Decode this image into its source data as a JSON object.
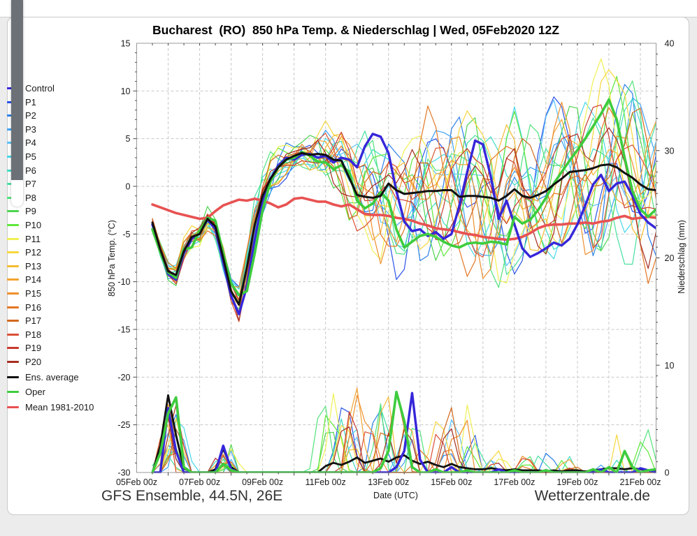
{
  "page": {
    "title": "Bucharest  (RO)  850 hPa Temp. & Niederschlag | Wed, 05Feb2020 12Z",
    "footer_left": "GFS Ensemble, 44.5N, 26E",
    "footer_right": "Wetterzentrale.de"
  },
  "legend": {
    "items": [
      {
        "label": "Control",
        "color": "#3626d9"
      },
      {
        "label": "P1",
        "color": "#2a52e8"
      },
      {
        "label": "P2",
        "color": "#2a7fe8"
      },
      {
        "label": "P3",
        "color": "#3fa2f5"
      },
      {
        "label": "P4",
        "color": "#5cc0fa"
      },
      {
        "label": "P5",
        "color": "#49d7e8"
      },
      {
        "label": "P6",
        "color": "#3fdcc3"
      },
      {
        "label": "P7",
        "color": "#47e0a0"
      },
      {
        "label": "P8",
        "color": "#52e27c"
      },
      {
        "label": "P9",
        "color": "#4fd44f"
      },
      {
        "label": "P10",
        "color": "#5fe83a"
      },
      {
        "label": "P11",
        "color": "#f0f055"
      },
      {
        "label": "P12",
        "color": "#f7d73e"
      },
      {
        "label": "P13",
        "color": "#f5bc35"
      },
      {
        "label": "P14",
        "color": "#f2a431"
      },
      {
        "label": "P15",
        "color": "#ee8f2c"
      },
      {
        "label": "P16",
        "color": "#e47724"
      },
      {
        "label": "P17",
        "color": "#d2691e"
      },
      {
        "label": "P18",
        "color": "#da5035"
      },
      {
        "label": "P19",
        "color": "#c83a2e"
      },
      {
        "label": "P20",
        "color": "#a62d20"
      },
      {
        "label": "Ens. average",
        "color": "#111111"
      },
      {
        "label": "Oper",
        "color": "#3ecc3e"
      },
      {
        "label": "Mean 1981-2010",
        "color": "#e85252"
      }
    ]
  },
  "chart_data": {
    "type": "line",
    "title": "Bucharest  (RO)  850 hPa Temp. & Niederschlag | Wed, 05Feb2020 12Z",
    "xlabel": "Date (UTC)",
    "ylabel_left": "850 hPa Temp. (°C)",
    "ylabel_right": "Niederschlag (mm)",
    "ylim_left": [
      -30,
      15
    ],
    "yticks_left": [
      15,
      10,
      5,
      0,
      -5,
      -10,
      -15,
      -20,
      -25,
      -30
    ],
    "ylim_right": [
      0,
      40
    ],
    "yticks_right": [
      0,
      10,
      20,
      30,
      40
    ],
    "x_days_span": 16.5,
    "x_tick_days": [
      0,
      2,
      4,
      6,
      8,
      10,
      12,
      14,
      16
    ],
    "x_tick_labels": [
      "05Feb 00z",
      "07Feb 00z",
      "09Feb 00z",
      "11Feb 00z",
      "13Feb 00z",
      "15Feb 00z",
      "17Feb 00z",
      "19Feb 00z",
      "21Feb 00z"
    ],
    "grid": true,
    "legend_position": "outside-left",
    "time": {
      "start_day": 0.5,
      "step_day": 0.25,
      "points": 65
    },
    "main_series": [
      {
        "name": "Mean 1981-2010",
        "color": "#e85252",
        "width": 3.6,
        "temp": [
          -1.9,
          -2.2,
          -2.5,
          -2.8,
          -3.0,
          -3.2,
          -3.4,
          -3.3,
          -2.6,
          -2.0,
          -1.7,
          -1.4,
          -1.5,
          -1.3,
          -1.5,
          -1.8,
          -2.2,
          -1.9,
          -1.3,
          -1.2,
          -1.4,
          -1.6,
          -1.6,
          -1.9,
          -2.1,
          -1.9,
          -2.4,
          -2.9,
          -3.0,
          -3.0,
          -3.1,
          -3.3,
          -3.4,
          -3.6,
          -3.9,
          -4.1,
          -4.4,
          -4.5,
          -4.6,
          -4.8,
          -5.0,
          -5.1,
          -5.3,
          -5.4,
          -5.5,
          -5.6,
          -5.5,
          -5.3,
          -4.9,
          -4.4,
          -4.1,
          -4.0,
          -4.0,
          -3.9,
          -3.9,
          -3.8,
          -3.9,
          -3.7,
          -3.6,
          -3.3,
          -3.1,
          -3.4,
          -3.3,
          -3.2,
          -3.3
        ],
        "precip": null
      },
      {
        "name": "Control",
        "color": "#3626d9",
        "width": 3.4,
        "temp": [
          -4.0,
          -6.7,
          -9.2,
          -9.8,
          -7.0,
          -5.5,
          -4.9,
          -3.5,
          -4.5,
          -8.0,
          -11.5,
          -13.4,
          -10.5,
          -5.5,
          -1.5,
          0.8,
          2.2,
          3.0,
          2.8,
          3.3,
          3.4,
          3.0,
          3.2,
          2.5,
          3.0,
          2.8,
          2.0,
          4.2,
          5.5,
          5.2,
          3.5,
          -0.5,
          -3.7,
          -4.7,
          -4.5,
          -5.2,
          -4.8,
          -5.5,
          -5.0,
          -2.0,
          1.5,
          4.8,
          4.4,
          1.0,
          -3.4,
          -1.5,
          -4.0,
          -6.5,
          -7.4,
          -7.0,
          -6.5,
          -5.9,
          -6.2,
          -5.5,
          -4.0,
          -2.0,
          0.2,
          1.2,
          -0.5,
          0.3,
          0.5,
          -1.0,
          -2.9,
          -3.8,
          -4.4
        ],
        "precip": [
          0,
          0,
          6.0,
          2.0,
          0,
          0,
          0,
          0,
          0,
          2.5,
          0.3,
          0,
          0,
          0,
          0,
          0,
          0,
          0,
          0,
          0,
          0,
          0,
          0,
          0,
          0,
          0,
          0,
          0,
          0,
          0,
          0,
          0.5,
          2.0,
          7.4,
          1.2,
          0,
          0,
          0,
          0.5,
          0,
          0,
          0,
          0,
          0,
          0.3,
          0,
          0,
          0,
          0,
          0,
          0.2,
          0,
          0,
          0,
          0,
          0,
          0,
          0.3,
          0,
          0,
          0,
          0,
          0.4,
          0.2,
          0
        ]
      },
      {
        "name": "Oper",
        "color": "#3ecc3e",
        "width": 3.6,
        "temp": [
          -4.5,
          -6.9,
          -9.0,
          -9.6,
          -6.6,
          -6.4,
          -4.6,
          -3.3,
          -3.6,
          -7.0,
          -10.2,
          -11.4,
          -11.0,
          -7.0,
          -2.5,
          0.5,
          2.0,
          2.8,
          3.0,
          3.6,
          3.2,
          2.6,
          2.5,
          1.8,
          2.2,
          1.5,
          -1.5,
          -2.3,
          -1.8,
          -0.6,
          -1.5,
          -4.5,
          -6.4,
          -5.8,
          -5.2,
          -5.0,
          -5.3,
          -5.8,
          -6.2,
          -6.4,
          -6.0,
          -5.9,
          -6.0,
          -5.8,
          -5.9,
          -6.1,
          -3.2,
          -3.9,
          -3.5,
          -2.5,
          -1.2,
          0.3,
          1.5,
          2.7,
          3.8,
          5.0,
          6.3,
          7.6,
          9.1,
          7.0,
          3.0,
          -0.5,
          -2.4,
          -3.2,
          -2.4
        ],
        "precip": [
          0,
          1.8,
          5.5,
          7.0,
          0.5,
          0,
          0,
          0,
          0,
          0.8,
          0.2,
          0,
          0,
          0,
          0,
          0,
          0,
          0,
          0,
          0,
          0,
          0,
          0,
          0,
          0,
          0,
          0,
          0,
          0,
          0.4,
          2.0,
          7.5,
          4.8,
          0.5,
          0,
          0,
          0.3,
          0,
          0,
          0,
          0.2,
          0,
          0,
          0,
          0,
          0,
          0.2,
          0,
          0,
          0,
          0.2,
          0,
          0,
          0,
          0,
          0,
          0.3,
          0,
          0.5,
          0,
          2.0,
          0.5,
          0,
          0.2,
          0.3
        ]
      },
      {
        "name": "Ens. average",
        "color": "#111111",
        "width": 3.0,
        "temp": [
          -3.8,
          -6.6,
          -8.9,
          -9.3,
          -6.8,
          -5.3,
          -5.0,
          -3.4,
          -4.2,
          -7.5,
          -11.0,
          -12.4,
          -8.5,
          -4.0,
          -1.0,
          0.8,
          2.0,
          2.8,
          3.2,
          3.5,
          3.3,
          3.4,
          3.3,
          2.8,
          2.7,
          0.9,
          -0.9,
          -1.1,
          -1.2,
          -1.0,
          0.3,
          -0.4,
          -0.8,
          -0.7,
          -0.6,
          -0.5,
          -0.5,
          -0.4,
          -0.4,
          -1.1,
          -1.0,
          -1.0,
          -1.1,
          -1.2,
          -1.5,
          -1.0,
          -0.3,
          -1.0,
          -1.2,
          -0.9,
          -0.5,
          0.2,
          0.8,
          1.5,
          1.6,
          1.7,
          1.9,
          2.2,
          2.3,
          2.0,
          1.4,
          0.9,
          0.2,
          -0.3,
          -0.4
        ],
        "precip": [
          0,
          2.5,
          7.2,
          3.5,
          0.4,
          0,
          0,
          0,
          0.3,
          2.2,
          0.5,
          0,
          0,
          0,
          0,
          0,
          0,
          0,
          0,
          0,
          0,
          0,
          0.6,
          0.9,
          0.7,
          1.0,
          1.4,
          0.9,
          1.1,
          1.3,
          1.0,
          1.4,
          1.6,
          1.1,
          0.8,
          1.0,
          0.7,
          0.5,
          0.8,
          0.5,
          0.4,
          0.3,
          0.3,
          0.4,
          0.3,
          0.2,
          0.3,
          0.2,
          0.2,
          0.2,
          0.1,
          0.2,
          0.1,
          0.2,
          0.2,
          0.1,
          0.2,
          0.3,
          0.4,
          0.4,
          0.3,
          0.4,
          0.3,
          0.2,
          0.2
        ]
      }
    ],
    "members": {
      "names": [
        "P1",
        "P2",
        "P3",
        "P4",
        "P5",
        "P6",
        "P7",
        "P8",
        "P9",
        "P10",
        "P11",
        "P12",
        "P13",
        "P14",
        "P15",
        "P16",
        "P17",
        "P18",
        "P19",
        "P20"
      ],
      "base_series": "Ens. average",
      "spread_anchors": [
        [
          0.5,
          0.45
        ],
        [
          1.0,
          0.7
        ],
        [
          1.5,
          0.9
        ],
        [
          2.0,
          0.8
        ],
        [
          2.5,
          0.9
        ],
        [
          3.0,
          1.1
        ],
        [
          3.5,
          1.6
        ],
        [
          4.0,
          1.9
        ],
        [
          4.5,
          1.4
        ],
        [
          5.0,
          1.2
        ],
        [
          5.5,
          1.5
        ],
        [
          6.0,
          2.2
        ],
        [
          6.5,
          3.0
        ],
        [
          7.0,
          4.2
        ],
        [
          7.5,
          5.0
        ],
        [
          8.0,
          5.5
        ],
        [
          8.5,
          5.8
        ],
        [
          9.0,
          5.6
        ],
        [
          9.5,
          5.8
        ],
        [
          10.0,
          6.0
        ],
        [
          10.5,
          6.2
        ],
        [
          11.0,
          6.5
        ],
        [
          11.5,
          6.5
        ],
        [
          12.0,
          6.8
        ],
        [
          12.5,
          7.0
        ],
        [
          13.0,
          7.0
        ],
        [
          13.5,
          7.0
        ],
        [
          14.0,
          7.2
        ],
        [
          14.5,
          7.2
        ],
        [
          15.0,
          7.5
        ],
        [
          15.5,
          7.5
        ],
        [
          16.0,
          7.5
        ],
        [
          16.5,
          7.5
        ]
      ],
      "temp_clip": [
        -14.6,
        13.8
      ],
      "precip_events": [
        {
          "t0": 0.85,
          "t1": 1.35,
          "peak": 8.5,
          "prob": 1.0,
          "wmin": 0.3,
          "wmax": 0.5
        },
        {
          "t0": 2.5,
          "t1": 3.05,
          "peak": 3.0,
          "prob": 0.75,
          "wmin": 0.2,
          "wmax": 0.35
        },
        {
          "t0": 5.9,
          "t1": 8.3,
          "peak": 9.5,
          "prob": 0.85,
          "wmin": 0.25,
          "wmax": 0.5,
          "multi": true
        },
        {
          "t0": 8.3,
          "t1": 10.8,
          "peak": 8.0,
          "prob": 0.8,
          "wmin": 0.25,
          "wmax": 0.5,
          "multi": true
        },
        {
          "t0": 10.8,
          "t1": 13.2,
          "peak": 2.5,
          "prob": 0.55,
          "wmin": 0.2,
          "wmax": 0.45
        },
        {
          "t0": 13.2,
          "t1": 15.2,
          "peak": 1.6,
          "prob": 0.45,
          "wmin": 0.2,
          "wmax": 0.4
        },
        {
          "t0": 15.0,
          "t1": 16.45,
          "peak": 4.5,
          "prob": 0.5,
          "wmin": 0.2,
          "wmax": 0.45
        }
      ]
    }
  }
}
